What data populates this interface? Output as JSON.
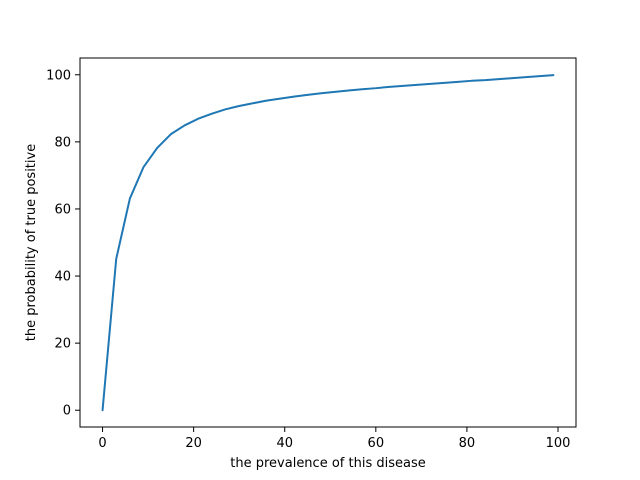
{
  "chart_data": {
    "type": "line",
    "title": "",
    "xlabel": "the prevalence of this disease",
    "ylabel": "the probability of true positive",
    "xlim": [
      -4.95,
      103.95
    ],
    "ylim": [
      -5.0,
      105.0
    ],
    "xticks": [
      0,
      20,
      40,
      60,
      80,
      100
    ],
    "yticks": [
      0,
      20,
      40,
      60,
      80,
      100
    ],
    "grid": false,
    "legend": "none",
    "series": [
      {
        "color": "#1f77b4",
        "x": [
          0,
          3,
          6,
          9,
          12,
          15,
          18,
          21,
          24,
          27,
          30,
          33,
          36,
          39,
          42,
          45,
          48,
          51,
          54,
          57,
          60,
          63,
          66,
          69,
          72,
          75,
          78,
          81,
          84,
          87,
          90,
          93,
          96,
          99
        ],
        "y": [
          0,
          45.1,
          63.1,
          72.5,
          78.2,
          82.3,
          84.9,
          86.9,
          88.4,
          89.7,
          90.7,
          91.5,
          92.3,
          92.9,
          93.5,
          94.0,
          94.5,
          94.9,
          95.3,
          95.7,
          96.0,
          96.4,
          96.7,
          97.0,
          97.3,
          97.6,
          97.9,
          98.2,
          98.4,
          98.7,
          99.0,
          99.3,
          99.6,
          99.9
        ]
      }
    ]
  }
}
